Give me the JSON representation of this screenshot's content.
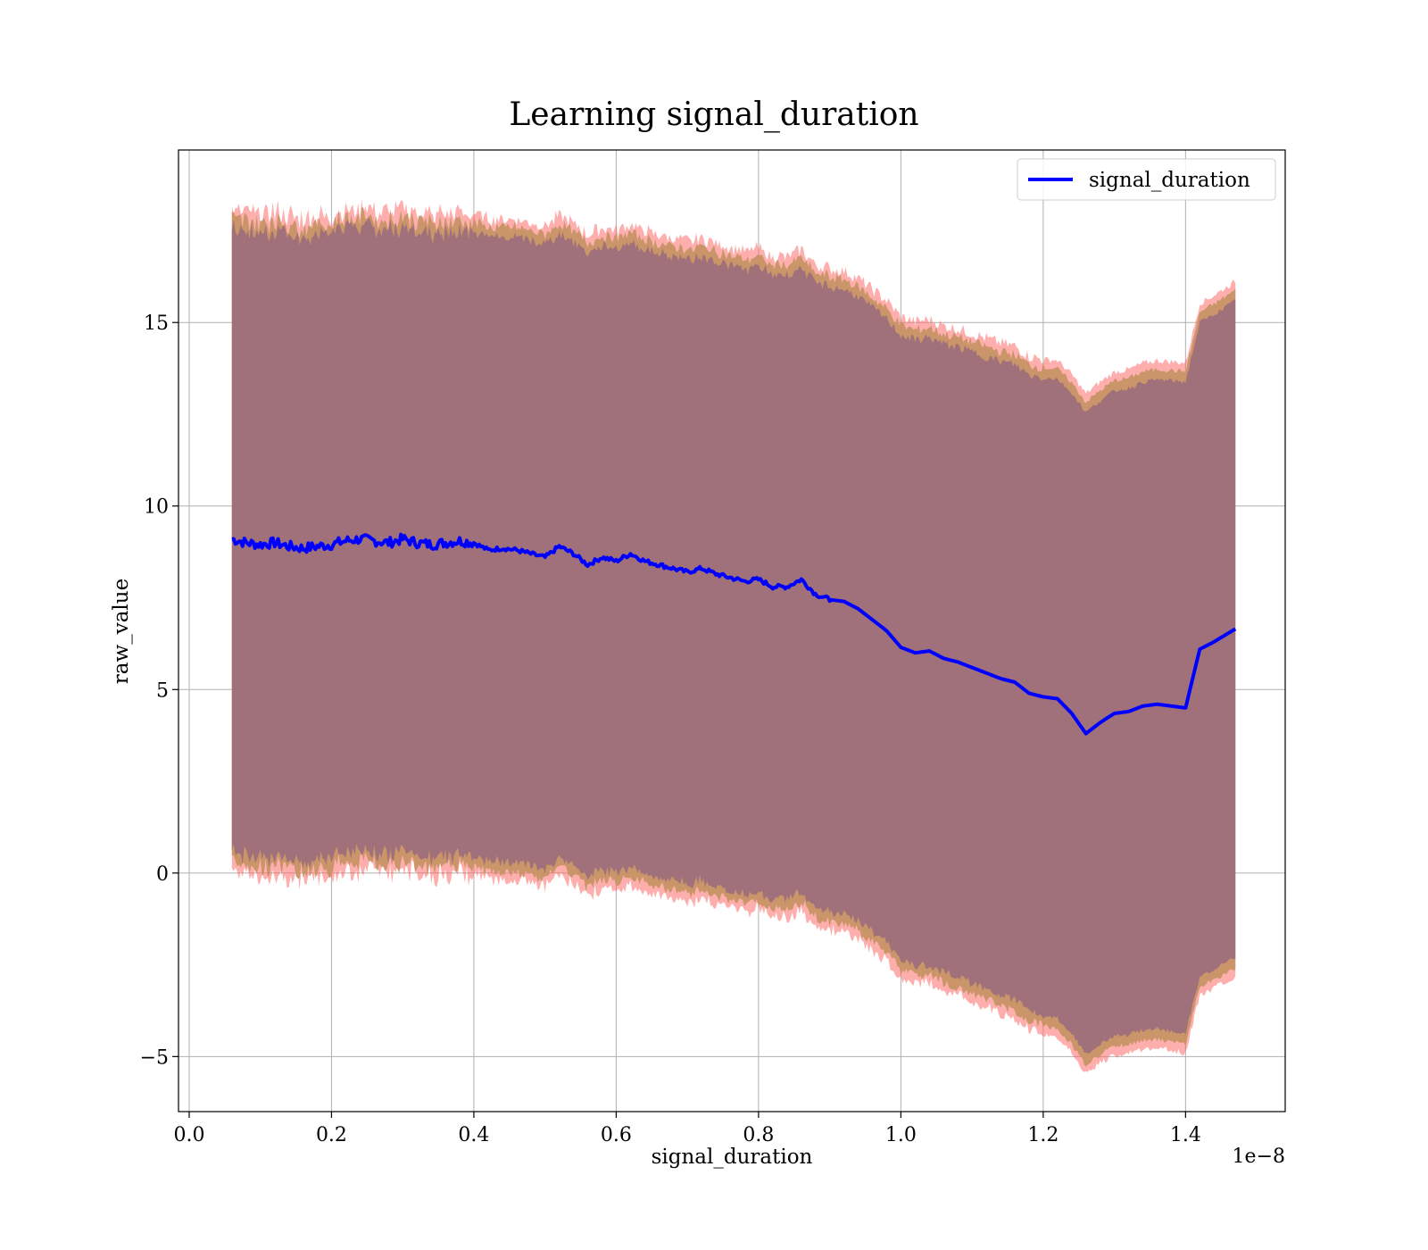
{
  "chart_data": {
    "type": "line",
    "title": "Learning signal_duration",
    "xlabel": "signal_duration",
    "ylabel": "raw_value",
    "x_offset_label": "1e−8",
    "x_tick_labels": [
      "0.0",
      "0.2",
      "0.4",
      "0.6",
      "0.8",
      "1.0",
      "1.2",
      "1.4"
    ],
    "y_tick_labels": [
      "−5",
      "0",
      "5",
      "10",
      "15"
    ],
    "xlim": [
      -0.015,
      1.54
    ],
    "ylim": [
      -6.5,
      19.7
    ],
    "x_ticks": [
      0.0,
      0.2,
      0.4,
      0.6,
      0.8,
      1.0,
      1.2,
      1.4
    ],
    "y_ticks": [
      -5,
      0,
      5,
      10,
      15
    ],
    "grid": true,
    "legend_position": "top-right",
    "series": [
      {
        "name": "signal_duration",
        "color": "#0000ff",
        "x": [
          0.06,
          0.08,
          0.1,
          0.12,
          0.14,
          0.16,
          0.18,
          0.2,
          0.22,
          0.24,
          0.26,
          0.28,
          0.3,
          0.32,
          0.34,
          0.36,
          0.38,
          0.4,
          0.42,
          0.44,
          0.46,
          0.48,
          0.5,
          0.52,
          0.54,
          0.56,
          0.58,
          0.6,
          0.62,
          0.64,
          0.66,
          0.68,
          0.7,
          0.72,
          0.74,
          0.76,
          0.78,
          0.8,
          0.82,
          0.84,
          0.86,
          0.88,
          0.9,
          0.92,
          0.94,
          0.96,
          0.98,
          1.0,
          1.02,
          1.04,
          1.06,
          1.08,
          1.1,
          1.12,
          1.14,
          1.16,
          1.18,
          1.2,
          1.22,
          1.24,
          1.26,
          1.28,
          1.3,
          1.32,
          1.34,
          1.36,
          1.38,
          1.4,
          1.42,
          1.44,
          1.47
        ],
        "values": [
          9.1,
          9.0,
          8.95,
          9.0,
          8.9,
          8.85,
          8.9,
          8.95,
          9.05,
          9.1,
          9.05,
          9.0,
          9.1,
          9.0,
          8.95,
          9.0,
          9.05,
          9.0,
          8.8,
          8.85,
          8.8,
          8.7,
          8.6,
          8.9,
          8.7,
          8.4,
          8.6,
          8.5,
          8.7,
          8.5,
          8.4,
          8.3,
          8.2,
          8.3,
          8.15,
          8.05,
          7.95,
          8.0,
          7.8,
          7.8,
          8.0,
          7.6,
          7.45,
          7.4,
          7.2,
          6.9,
          6.6,
          6.15,
          6.0,
          6.05,
          5.85,
          5.75,
          5.6,
          5.45,
          5.3,
          5.2,
          4.9,
          4.8,
          4.75,
          4.35,
          3.8,
          4.1,
          4.35,
          4.4,
          4.55,
          4.6,
          4.55,
          4.5,
          6.1,
          6.3,
          6.65
        ]
      }
    ]
  }
}
